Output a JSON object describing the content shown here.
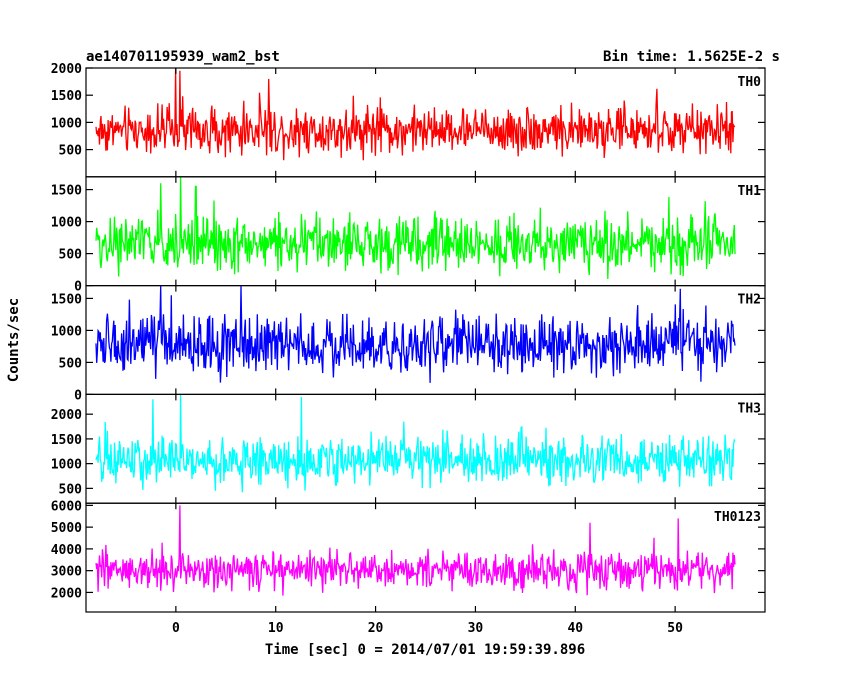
{
  "chart_data": {
    "type": "line",
    "title_left": "ae140701195939_wam2_bst",
    "title_right": "Bin time: 1.5625E-2 s",
    "xlabel": "Time [sec] 0 = 2014/07/01 19:59:39.896",
    "ylabel": "Counts/sec",
    "xlim": [
      -9,
      59
    ],
    "x_ticks": [
      0,
      10,
      20,
      30,
      40,
      50
    ],
    "x_start": -8.0,
    "x_end": 56.0,
    "series": [
      {
        "name": "TH0",
        "color": "#ff0000",
        "ylim": [
          0,
          2000
        ],
        "y_ticks": [
          500,
          1000,
          1500,
          2000
        ],
        "base": 850,
        "spread": 430,
        "max_peak": 1850,
        "floor": 200,
        "spike_x": [
          0.0,
          0.4,
          9.3
        ],
        "spike_y": [
          2000,
          1950,
          1800
        ]
      },
      {
        "name": "TH1",
        "color": "#00ff00",
        "ylim": [
          0,
          1700
        ],
        "y_ticks": [
          0,
          500,
          1000,
          1500
        ],
        "base": 650,
        "spread": 430,
        "max_peak": 1550,
        "floor": 40,
        "spike_x": [
          0.5,
          -1.5,
          2.0
        ],
        "spike_y": [
          1700,
          1600,
          1550
        ]
      },
      {
        "name": "TH2",
        "color": "#0000ff",
        "ylim": [
          0,
          1700
        ],
        "y_ticks": [
          0,
          500,
          1000,
          1500
        ],
        "base": 760,
        "spread": 460,
        "max_peak": 1650,
        "floor": 60,
        "spike_x": [
          -1.5,
          6.5,
          50.5
        ],
        "spike_y": [
          1700,
          1700,
          1650
        ]
      },
      {
        "name": "TH3",
        "color": "#00ffff",
        "ylim": [
          200,
          2400
        ],
        "y_ticks": [
          500,
          1000,
          1500,
          2000
        ],
        "base": 1050,
        "spread": 500,
        "max_peak": 2200,
        "floor": 300,
        "spike_x": [
          0.5,
          12.6,
          -2.3
        ],
        "spike_y": [
          2400,
          2350,
          2300
        ]
      },
      {
        "name": "TH0123",
        "color": "#ff00ff",
        "ylim": [
          1100,
          6100
        ],
        "y_ticks": [
          2000,
          3000,
          4000,
          5000,
          6000
        ],
        "base": 3000,
        "spread": 900,
        "max_peak": 5000,
        "floor": 1500,
        "spike_x": [
          0.4,
          50.3,
          41.5
        ],
        "spike_y": [
          6000,
          5400,
          5200
        ]
      }
    ]
  }
}
